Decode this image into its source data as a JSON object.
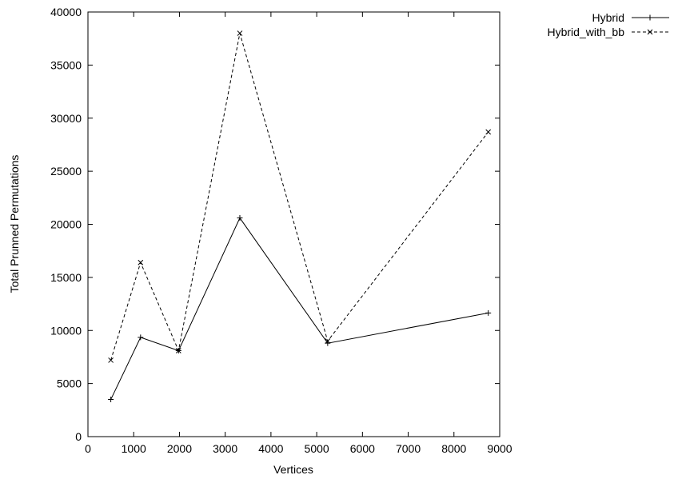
{
  "chart_data": {
    "type": "line",
    "xlabel": "Vertices",
    "ylabel": "Total Prunned Permutations",
    "xlim": [
      0,
      9000
    ],
    "ylim": [
      0,
      40000
    ],
    "x_ticks": [
      0,
      1000,
      2000,
      3000,
      4000,
      5000,
      6000,
      7000,
      8000,
      9000
    ],
    "y_ticks": [
      0,
      5000,
      10000,
      15000,
      20000,
      25000,
      30000,
      35000,
      40000
    ],
    "legend_position": "top-right, outside plot",
    "grid": false,
    "series": [
      {
        "name": "Hybrid",
        "style": "solid",
        "marker": "+",
        "x": [
          500,
          1150,
          1980,
          3320,
          5240,
          8750
        ],
        "y": [
          3500,
          9350,
          8100,
          20600,
          8800,
          11650
        ]
      },
      {
        "name": "Hybrid_with_bb",
        "style": "dashed",
        "marker": "x",
        "x": [
          500,
          1150,
          1980,
          3320,
          5240,
          8750
        ],
        "y": [
          7200,
          16400,
          8100,
          38000,
          9000,
          28700
        ]
      }
    ]
  }
}
